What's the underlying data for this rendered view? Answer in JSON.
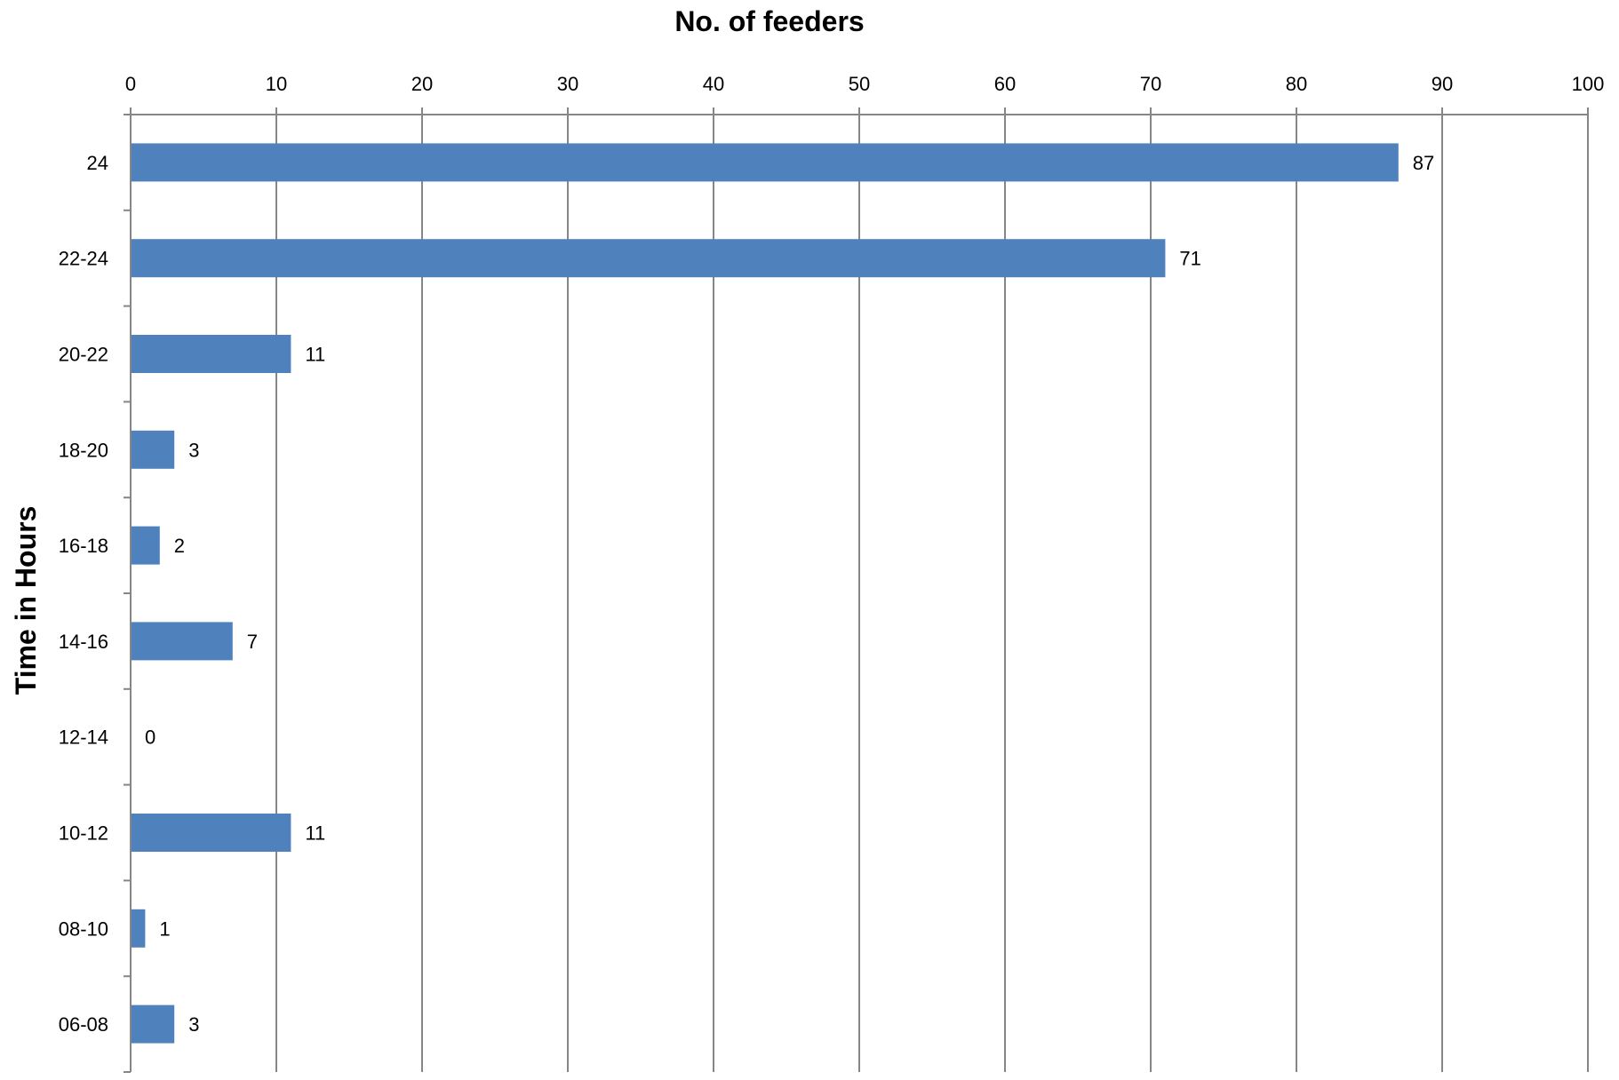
{
  "chart_data": {
    "type": "bar",
    "orientation": "horizontal",
    "xlabel": "No. of feeders",
    "ylabel": "Time in Hours",
    "xlim": [
      0,
      100
    ],
    "x_ticks": [
      "0",
      "10",
      "20",
      "30",
      "40",
      "50",
      "60",
      "70",
      "80",
      "90",
      "100"
    ],
    "x_axis_position": "top",
    "grid": "vertical",
    "categories": [
      "24",
      "22-24",
      "20-22",
      "18-20",
      "16-18",
      "14-16",
      "12-14",
      "10-12",
      "08-10",
      "06-08"
    ],
    "values": [
      87,
      71,
      11,
      3,
      2,
      7,
      0,
      11,
      1,
      3
    ],
    "data_labels": [
      "87",
      "71",
      "11",
      "3",
      "2",
      "7",
      "0",
      "11",
      "1",
      "3"
    ],
    "bar_color": "#4f81bd",
    "grid_color": "#868686"
  }
}
